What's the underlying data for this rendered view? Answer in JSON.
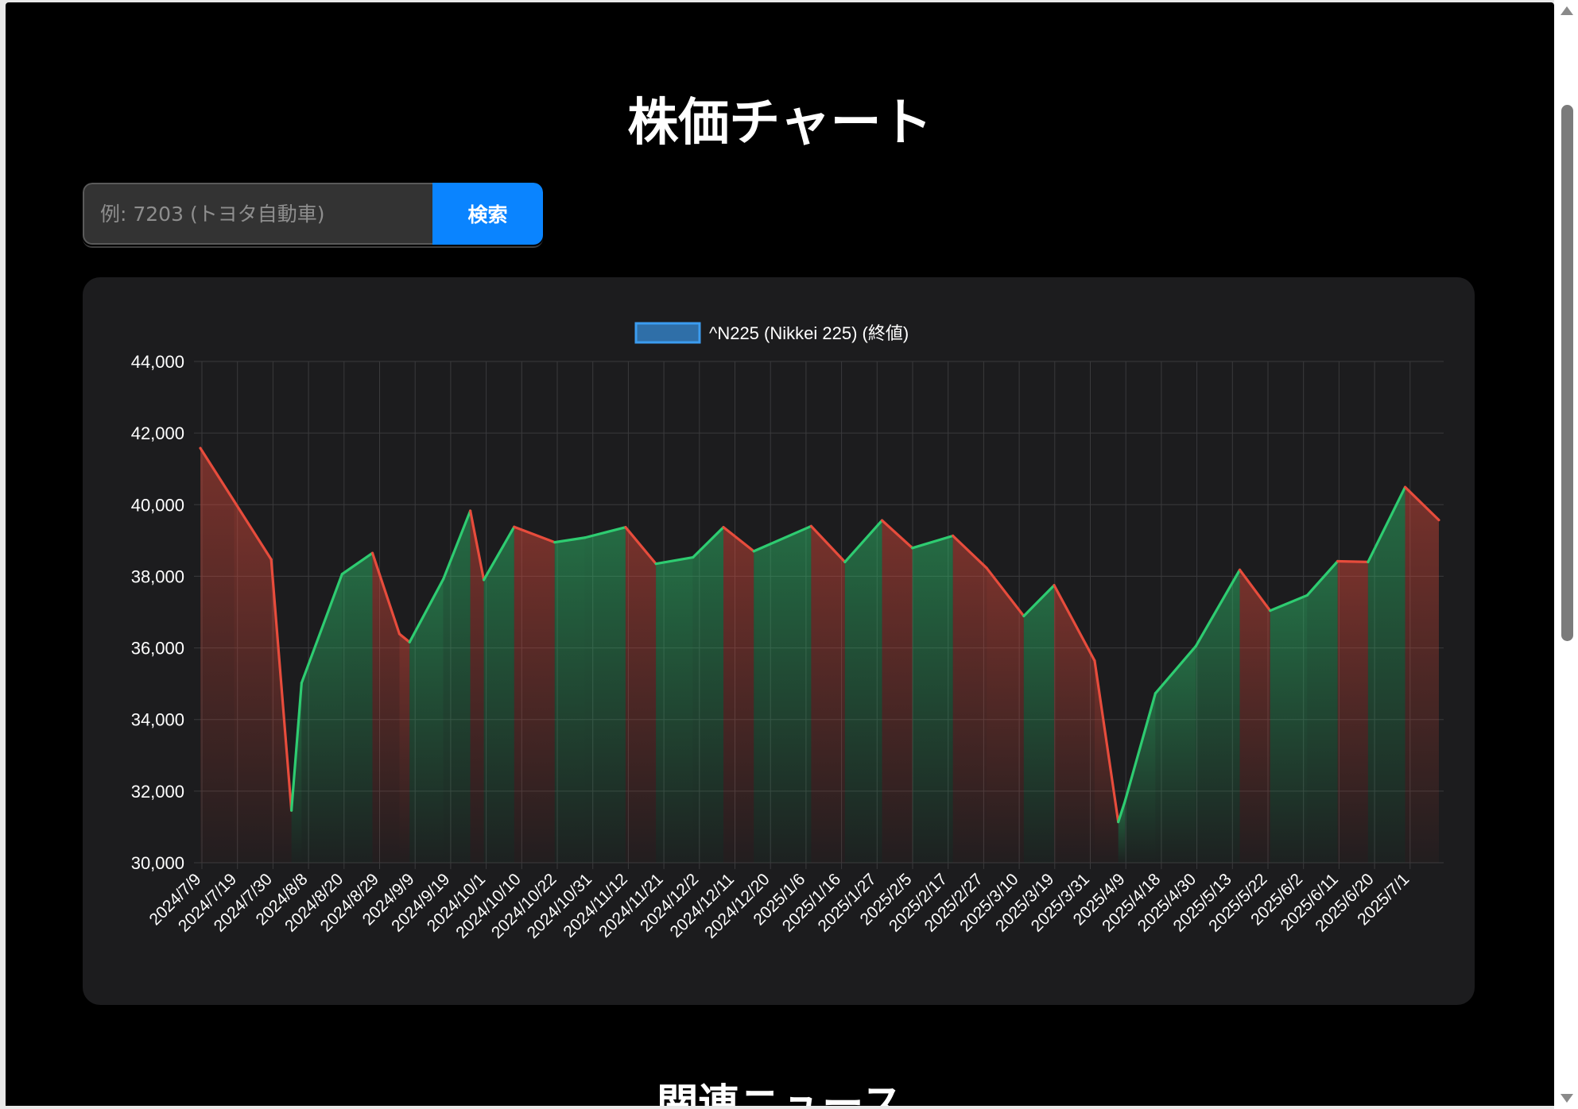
{
  "page": {
    "title": "株価チャート",
    "news_heading": "関連ニュース"
  },
  "search": {
    "placeholder": "例: 7203 (トヨタ自動車)",
    "button_label": "検索"
  },
  "colors": {
    "up": "#2ecc71",
    "down": "#e74c3c",
    "accent": "#0a84ff",
    "legend_fill": "#2f6fa8",
    "legend_border": "#3b9cf0"
  },
  "chart_data": {
    "type": "line",
    "legend": [
      "^N225 (Nikkei 225) (終値)"
    ],
    "legend_position": "top-center",
    "grid": true,
    "ylim": [
      30000,
      44000
    ],
    "y_ticks": [
      44000,
      42000,
      40000,
      38000,
      36000,
      34000,
      32000,
      30000
    ],
    "y_tick_labels": [
      "44,000",
      "42,000",
      "40,000",
      "38,000",
      "36,000",
      "34,000",
      "32,000",
      "30,000"
    ],
    "x_tick_labels": [
      "2024/7/9",
      "2024/7/19",
      "2024/7/30",
      "2024/8/8",
      "2024/8/20",
      "2024/8/29",
      "2024/9/9",
      "2024/9/19",
      "2024/10/1",
      "2024/10/10",
      "2024/10/22",
      "2024/10/31",
      "2024/11/12",
      "2024/11/21",
      "2024/12/2",
      "2024/12/11",
      "2024/12/20",
      "2025/1/6",
      "2025/1/16",
      "2025/1/27",
      "2025/2/5",
      "2025/2/17",
      "2025/2/27",
      "2025/3/10",
      "2025/3/19",
      "2025/3/31",
      "2025/4/9",
      "2025/4/18",
      "2025/4/30",
      "2025/5/13",
      "2025/5/22",
      "2025/6/2",
      "2025/6/11",
      "2025/6/20",
      "2025/7/1"
    ],
    "series": [
      {
        "name": "^N225 (Nikkei 225) (終値)",
        "x": [
          "2024/7/9",
          "2024/7/19",
          "2024/7/30",
          "2024/8/5",
          "2024/8/8",
          "2024/8/20",
          "2024/8/29",
          "2024/9/6",
          "2024/9/9",
          "2024/9/19",
          "2024/9/27",
          "2024/10/1",
          "2024/10/10",
          "2024/10/22",
          "2024/10/31",
          "2024/11/12",
          "2024/11/21",
          "2024/12/2",
          "2024/12/11",
          "2024/12/20",
          "2025/1/6",
          "2025/1/16",
          "2025/1/27",
          "2025/2/5",
          "2025/2/17",
          "2025/2/27",
          "2025/3/10",
          "2025/3/19",
          "2025/3/31",
          "2025/4/7",
          "2025/4/9",
          "2025/4/18",
          "2025/4/30",
          "2025/5/13",
          "2025/5/22",
          "2025/6/2",
          "2025/6/11",
          "2025/6/20",
          "2025/7/1",
          "2025/7/11"
        ],
        "values": [
          41580,
          40100,
          38470,
          31460,
          35020,
          38060,
          38650,
          36390,
          36160,
          37920,
          39830,
          37900,
          39380,
          38950,
          39080,
          39370,
          38350,
          38530,
          39370,
          38700,
          39400,
          38400,
          39560,
          38790,
          39130,
          38230,
          36890,
          37750,
          35640,
          31140,
          31720,
          34730,
          36050,
          38180,
          37040,
          37470,
          38420,
          38400,
          40490,
          39570
        ]
      }
    ]
  }
}
